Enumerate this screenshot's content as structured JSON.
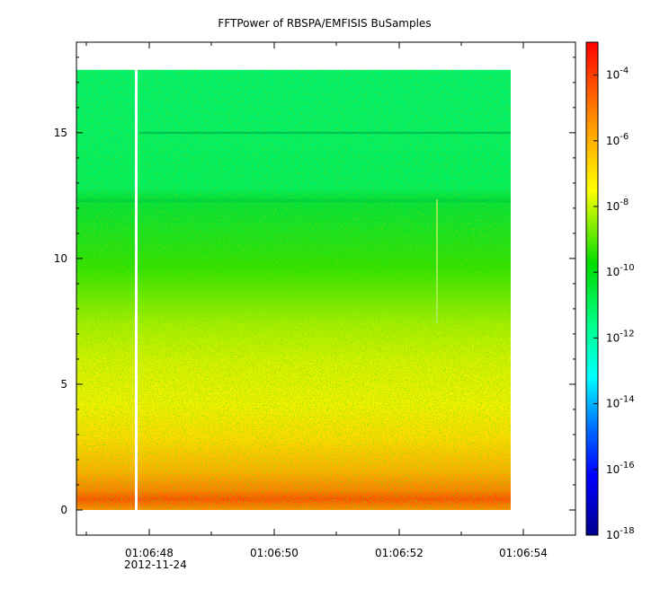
{
  "chart_data": {
    "type": "heatmap",
    "title": "FFTPower of RBSPA/EMFISIS  BuSamples",
    "xlabel": "",
    "ylabel": "",
    "x_tick_labels": [
      "01:06:48",
      "01:06:50",
      "01:06:52",
      "01:06:54"
    ],
    "x_date_label": "2012-11-24",
    "y_ticks": [
      0,
      5,
      10,
      15
    ],
    "ylim": [
      -1,
      18.6
    ],
    "data_y_range": [
      0,
      17.5
    ],
    "colorbar": {
      "scale": "log",
      "range": [
        1e-18,
        0.001
      ],
      "tick_exponents": [
        -4,
        -6,
        -8,
        -10,
        -12,
        -14,
        -16,
        -18
      ],
      "colormap": [
        "#00008f",
        "#0000ff",
        "#0080ff",
        "#00ffff",
        "#00ff80",
        "#00e000",
        "#ffff00",
        "#ff8000",
        "#ff0000"
      ]
    },
    "features": {
      "data_gap": "01:06:47.8",
      "narrow_line_frequency": 15,
      "upper_band_edge": 12.3
    }
  }
}
